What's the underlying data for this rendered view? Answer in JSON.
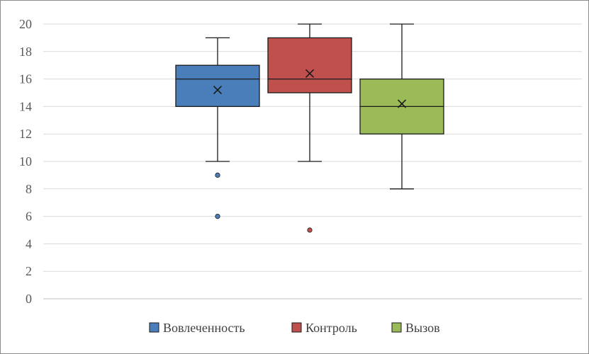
{
  "chart_data": {
    "type": "boxplot",
    "title": "",
    "xlabel": "",
    "ylabel": "",
    "ylim": [
      0,
      20
    ],
    "yticks": [
      0,
      2,
      4,
      6,
      8,
      10,
      12,
      14,
      16,
      18,
      20
    ],
    "grid": true,
    "legend_position": "bottom",
    "series": [
      {
        "name": "Вовлеченность",
        "color": "#4a7ebb",
        "min": 10,
        "q1": 14,
        "median": 16,
        "q3": 17,
        "max": 19,
        "mean": 15.2,
        "outliers": [
          9,
          6
        ]
      },
      {
        "name": "Контроль",
        "color": "#c0504d",
        "min": 10,
        "q1": 15,
        "median": 16,
        "q3": 19,
        "max": 20,
        "mean": 16.4,
        "outliers": [
          5
        ]
      },
      {
        "name": "Вызов",
        "color": "#9bbb59",
        "min": 8,
        "q1": 12,
        "median": 14,
        "q3": 16,
        "max": 20,
        "mean": 14.2,
        "outliers": []
      }
    ]
  }
}
